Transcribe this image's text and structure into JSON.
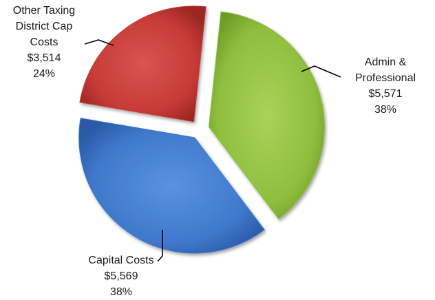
{
  "chart_data": {
    "type": "pie",
    "exploded": true,
    "style": "3d-beveled",
    "slices": [
      {
        "label_lines": [
          "Admin &",
          "Professional"
        ],
        "value": 5571,
        "value_text": "$5,571",
        "percent": 38,
        "percent_text": "38%",
        "color": "#8fbe3f"
      },
      {
        "label_lines": [
          "Capital Costs"
        ],
        "value": 5569,
        "value_text": "$5,569",
        "percent": 38,
        "percent_text": "38%",
        "color": "#3f78cc"
      },
      {
        "label_lines": [
          "Other Taxing",
          "District Cap",
          "Costs"
        ],
        "value": 3514,
        "value_text": "$3,514",
        "percent": 24,
        "percent_text": "24%",
        "color": "#c63a36"
      }
    ]
  }
}
